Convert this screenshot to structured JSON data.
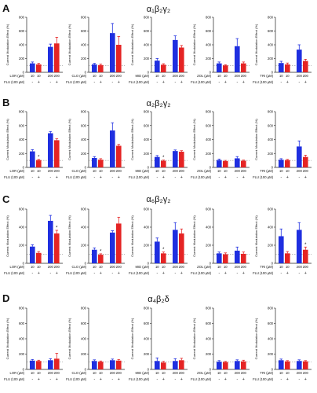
{
  "colors": {
    "blue": "#1f2fe0",
    "red": "#e52424",
    "axis": "#222222",
    "dash": "#777777"
  },
  "rows": [
    {
      "letter": "A",
      "title": "α₁β₂γ₂"
    },
    {
      "letter": "B",
      "title": "α₂β₂γ₂"
    },
    {
      "letter": "C",
      "title": "α₆β₂γ₂"
    },
    {
      "letter": "D",
      "title": "α₄β₂δ"
    }
  ],
  "flu_label": "FLU (100 µM)",
  "chart_data": [
    {
      "type": "bar",
      "row": "A",
      "ylabel": "Current Modulation Effect (%)",
      "yticks": [
        "0",
        "200",
        "400",
        "600",
        "800"
      ],
      "ylim": [
        0,
        800
      ],
      "drug_label": "LOR (µM)",
      "conc": [
        "10",
        "10",
        "200",
        "200"
      ],
      "flu": [
        "-",
        "+",
        "-",
        "+"
      ],
      "values": [
        130,
        115,
        370,
        420
      ],
      "errors": [
        20,
        15,
        40,
        90
      ],
      "stars": [
        "",
        "",
        "",
        ""
      ]
    },
    {
      "type": "bar",
      "row": "A",
      "ylabel": "Current Modulation Effect (%)",
      "yticks": [
        "0",
        "200",
        "400",
        "600",
        "800"
      ],
      "ylim": [
        0,
        800
      ],
      "drug_label": "CLO (µM)",
      "conc": [
        "10",
        "10",
        "200",
        "200"
      ],
      "flu": [
        "-",
        "+",
        "-",
        "+"
      ],
      "values": [
        115,
        105,
        570,
        400
      ],
      "errors": [
        15,
        15,
        140,
        120
      ],
      "stars": [
        "",
        "",
        "",
        ""
      ]
    },
    {
      "type": "bar",
      "row": "A",
      "ylabel": "Current Modulation Effect (%)",
      "yticks": [
        "0",
        "200",
        "400",
        "600",
        "800"
      ],
      "ylim": [
        0,
        800
      ],
      "drug_label": "MID (µM)",
      "conc": [
        "10",
        "10",
        "200",
        "200"
      ],
      "flu": [
        "-",
        "+",
        "-",
        "+"
      ],
      "values": [
        170,
        110,
        470,
        360
      ],
      "errors": [
        30,
        15,
        60,
        30
      ],
      "stars": [
        "",
        "",
        "",
        ""
      ]
    },
    {
      "type": "bar",
      "row": "A",
      "ylabel": "Current Modulation Effect (%)",
      "yticks": [
        "0",
        "200",
        "400",
        "600",
        "800"
      ],
      "ylim": [
        0,
        800
      ],
      "drug_label": "ZOL (µM)",
      "conc": [
        "10",
        "10",
        "200",
        "200"
      ],
      "flu": [
        "-",
        "+",
        "-",
        "+"
      ],
      "values": [
        130,
        100,
        380,
        130
      ],
      "errors": [
        20,
        10,
        110,
        20
      ],
      "stars": [
        "",
        "",
        "",
        ""
      ]
    },
    {
      "type": "bar",
      "row": "A",
      "ylabel": "Current Modulation Effect (%)",
      "yticks": [
        "0",
        "200",
        "400",
        "600",
        "800"
      ],
      "ylim": [
        0,
        800
      ],
      "drug_label": "TRI (µM)",
      "conc": [
        "10",
        "10",
        "200",
        "200"
      ],
      "flu": [
        "-",
        "+",
        "-",
        "+"
      ],
      "values": [
        135,
        115,
        330,
        165
      ],
      "errors": [
        25,
        20,
        70,
        25
      ],
      "stars": [
        "",
        "",
        "",
        ""
      ]
    },
    {
      "type": "bar",
      "row": "B",
      "ylabel": "Current Modulation Effect (%)",
      "yticks": [
        "0",
        "200",
        "400",
        "600",
        "800"
      ],
      "ylim": [
        0,
        800
      ],
      "drug_label": "LOR (µM)",
      "conc": [
        "10",
        "10",
        "200",
        "200"
      ],
      "flu": [
        "-",
        "+",
        "-",
        "+"
      ],
      "values": [
        230,
        105,
        490,
        390
      ],
      "errors": [
        25,
        10,
        25,
        20
      ],
      "stars": [
        "",
        "*",
        "",
        ""
      ]
    },
    {
      "type": "bar",
      "row": "B",
      "ylabel": "Current Modulation Effect (%)",
      "yticks": [
        "0",
        "200",
        "400",
        "600",
        "800"
      ],
      "ylim": [
        0,
        800
      ],
      "drug_label": "CLO (µM)",
      "conc": [
        "10",
        "10",
        "200",
        "200"
      ],
      "flu": [
        "-",
        "+",
        "-",
        "+"
      ],
      "values": [
        135,
        110,
        530,
        310
      ],
      "errors": [
        20,
        15,
        110,
        20
      ],
      "stars": [
        "",
        "",
        "",
        ""
      ]
    },
    {
      "type": "bar",
      "row": "B",
      "ylabel": "Current Modulation Effect (%)",
      "yticks": [
        "0",
        "200",
        "400",
        "600",
        "800"
      ],
      "ylim": [
        0,
        800
      ],
      "drug_label": "MID (µM)",
      "conc": [
        "10",
        "10",
        "200",
        "200"
      ],
      "flu": [
        "-",
        "+",
        "-",
        "+"
      ],
      "values": [
        150,
        95,
        235,
        225
      ],
      "errors": [
        20,
        10,
        15,
        15
      ],
      "stars": [
        "",
        "*",
        "",
        ""
      ]
    },
    {
      "type": "bar",
      "row": "B",
      "ylabel": "Current Modulation Effect (%)",
      "yticks": [
        "0",
        "200",
        "400",
        "600",
        "800"
      ],
      "ylim": [
        0,
        800
      ],
      "drug_label": "ZOL (µM)",
      "conc": [
        "10",
        "10",
        "200",
        "200"
      ],
      "flu": [
        "-",
        "+",
        "-",
        "+"
      ],
      "values": [
        105,
        90,
        130,
        95
      ],
      "errors": [
        15,
        10,
        25,
        10
      ],
      "stars": [
        "",
        "",
        "",
        ""
      ]
    },
    {
      "type": "bar",
      "row": "B",
      "ylabel": "Current Modulation Effect (%)",
      "yticks": [
        "0",
        "200",
        "400",
        "600",
        "800"
      ],
      "ylim": [
        0,
        800
      ],
      "drug_label": "TRI (µM)",
      "conc": [
        "10",
        "10",
        "200",
        "200"
      ],
      "flu": [
        "-",
        "+",
        "-",
        "+"
      ],
      "values": [
        110,
        105,
        300,
        150
      ],
      "errors": [
        15,
        10,
        80,
        25
      ],
      "stars": [
        "",
        "",
        "",
        ""
      ]
    },
    {
      "type": "bar",
      "row": "C",
      "ylabel": "Current Modulation Effect (%)",
      "yticks": [
        "0",
        "200",
        "400",
        "600"
      ],
      "ylim": [
        0,
        600
      ],
      "drug_label": "LOR (µM)",
      "conc": [
        "10",
        "10",
        "200",
        "200"
      ],
      "flu": [
        "-",
        "+",
        "-",
        "+"
      ],
      "values": [
        185,
        115,
        470,
        330
      ],
      "errors": [
        20,
        15,
        60,
        35
      ],
      "stars": [
        "",
        "",
        "",
        "*"
      ]
    },
    {
      "type": "bar",
      "row": "C",
      "ylabel": "Current Modulation Effect (%)",
      "yticks": [
        "0",
        "200",
        "400",
        "600"
      ],
      "ylim": [
        0,
        600
      ],
      "drug_label": "CLO (µM)",
      "conc": [
        "10",
        "10",
        "200",
        "200"
      ],
      "flu": [
        "-",
        "+",
        "-",
        "+"
      ],
      "values": [
        150,
        95,
        340,
        440
      ],
      "errors": [
        20,
        10,
        20,
        70
      ],
      "stars": [
        "",
        "*",
        "",
        ""
      ]
    },
    {
      "type": "bar",
      "row": "C",
      "ylabel": "Current Modulation Effect (%)",
      "yticks": [
        "0",
        "200",
        "400",
        "600"
      ],
      "ylim": [
        0,
        600
      ],
      "drug_label": "MID (µM)",
      "conc": [
        "10",
        "10",
        "200",
        "200"
      ],
      "flu": [
        "-",
        "+",
        "-",
        "+"
      ],
      "values": [
        240,
        110,
        370,
        330
      ],
      "errors": [
        40,
        15,
        80,
        50
      ],
      "stars": [
        "",
        "*",
        "",
        ""
      ]
    },
    {
      "type": "bar",
      "row": "C",
      "ylabel": "Current Modulation Effect (%)",
      "yticks": [
        "0",
        "200",
        "400",
        "600"
      ],
      "ylim": [
        0,
        600
      ],
      "drug_label": "ZOL (µM)",
      "conc": [
        "10",
        "10",
        "200",
        "200"
      ],
      "flu": [
        "-",
        "+",
        "-",
        "+"
      ],
      "values": [
        110,
        100,
        140,
        105
      ],
      "errors": [
        15,
        15,
        40,
        20
      ],
      "stars": [
        "",
        "",
        "",
        ""
      ]
    },
    {
      "type": "bar",
      "row": "C",
      "ylabel": "Current Modulation Effect (%)",
      "yticks": [
        "0",
        "200",
        "400",
        "600"
      ],
      "ylim": [
        0,
        600
      ],
      "drug_label": "TRI (µM)",
      "conc": [
        "10",
        "10",
        "200",
        "200"
      ],
      "flu": [
        "-",
        "+",
        "-",
        "+"
      ],
      "values": [
        300,
        110,
        370,
        150
      ],
      "errors": [
        80,
        20,
        80,
        30
      ],
      "stars": [
        "",
        "",
        "",
        "*"
      ]
    },
    {
      "type": "bar",
      "row": "D",
      "ylabel": "Current Modulation Effect (%)",
      "yticks": [
        "0",
        "200",
        "400",
        "600",
        "800"
      ],
      "ylim": [
        0,
        800
      ],
      "drug_label": "LOR (µM)",
      "conc": [
        "10",
        "10",
        "200",
        "200"
      ],
      "flu": [
        "-",
        "+",
        "-",
        "+"
      ],
      "values": [
        115,
        110,
        120,
        140
      ],
      "errors": [
        15,
        10,
        20,
        70
      ],
      "stars": [
        "",
        "",
        "",
        ""
      ]
    },
    {
      "type": "bar",
      "row": "D",
      "ylabel": "Current Modulation Effect (%)",
      "yticks": [
        "0",
        "200",
        "400",
        "600",
        "800"
      ],
      "ylim": [
        0,
        800
      ],
      "drug_label": "CLO (µM)",
      "conc": [
        "10",
        "10",
        "200",
        "200"
      ],
      "flu": [
        "-",
        "+",
        "-",
        "+"
      ],
      "values": [
        110,
        100,
        120,
        115
      ],
      "errors": [
        15,
        10,
        15,
        15
      ],
      "stars": [
        "",
        "",
        "",
        ""
      ]
    },
    {
      "type": "bar",
      "row": "D",
      "ylabel": "Current Modulation Effect (%)",
      "yticks": [
        "0",
        "200",
        "400",
        "600",
        "800"
      ],
      "ylim": [
        0,
        800
      ],
      "drug_label": "MID (µM)",
      "conc": [
        "10",
        "10",
        "200",
        "200"
      ],
      "flu": [
        "-",
        "+",
        "-",
        "+"
      ],
      "values": [
        110,
        90,
        110,
        120
      ],
      "errors": [
        40,
        15,
        30,
        25
      ],
      "stars": [
        "",
        "",
        "",
        ""
      ]
    },
    {
      "type": "bar",
      "row": "D",
      "ylabel": "Current Modulation Effect (%)",
      "yticks": [
        "0",
        "200",
        "400",
        "600",
        "800"
      ],
      "ylim": [
        0,
        800
      ],
      "drug_label": "ZOL (µM)",
      "conc": [
        "10",
        "10",
        "200",
        "200"
      ],
      "flu": [
        "-",
        "+",
        "-",
        "+"
      ],
      "values": [
        100,
        95,
        110,
        105
      ],
      "errors": [
        15,
        10,
        15,
        15
      ],
      "stars": [
        "",
        "",
        "",
        ""
      ]
    },
    {
      "type": "bar",
      "row": "D",
      "ylabel": "Current Modulation Effect (%)",
      "yticks": [
        "0",
        "200",
        "400",
        "600",
        "800"
      ],
      "ylim": [
        0,
        800
      ],
      "drug_label": "TRI (µM)",
      "conc": [
        "10",
        "10",
        "200",
        "200"
      ],
      "flu": [
        "-",
        "+",
        "-",
        "+"
      ],
      "values": [
        120,
        105,
        110,
        105
      ],
      "errors": [
        15,
        10,
        15,
        10
      ],
      "stars": [
        "",
        "",
        "",
        ""
      ]
    }
  ]
}
